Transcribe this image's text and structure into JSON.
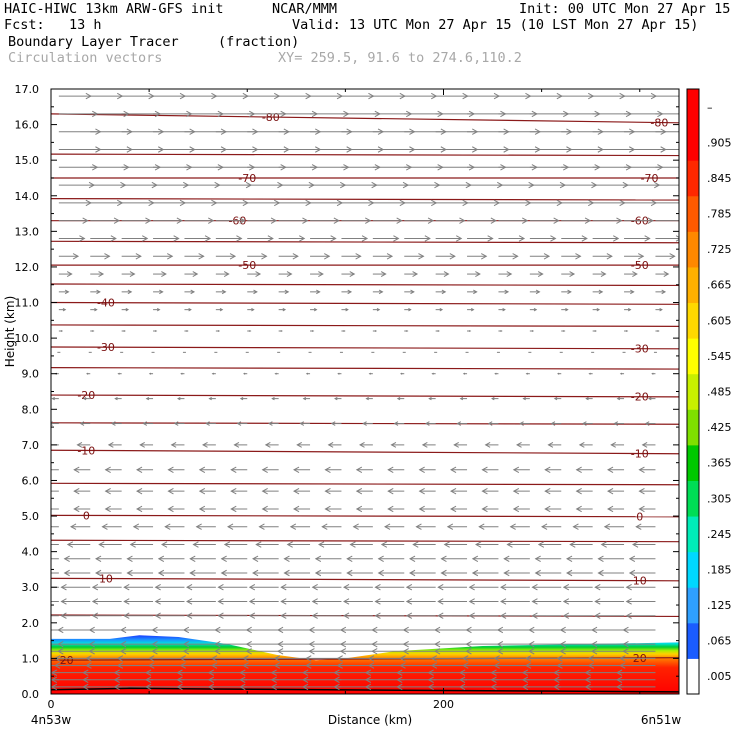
{
  "header": {
    "model": "HAIC-HIWC 13km ARW-GFS init",
    "org": "NCAR/MMM",
    "init": "Init: 00 UTC Mon 27 Apr 15",
    "fcst": "Fcst:   13 h",
    "valid": "Valid: 13 UTC Mon 27 Apr 15 (10 LST Mon 27 Apr 15)",
    "field_name": "Boundary Layer Tracer",
    "field_units": "(fraction)",
    "vector_name": "Circulation vectors",
    "xy": "XY= 259.5, 91.6 to 274.6,110.2"
  },
  "chart_data": {
    "type": "heatmap",
    "xlabel": "Distance (km)",
    "ylabel": "Height (km)",
    "xlim": [
      0,
      320
    ],
    "ylim": [
      0,
      17
    ],
    "y_ticks": [
      "0.0",
      "1.0",
      "2.0",
      "3.0",
      "4.0",
      "5.0",
      "6.0",
      "7.0",
      "8.0",
      "9.0",
      "10.0",
      "11.0",
      "12.0",
      "13.0",
      "14.0",
      "15.0",
      "16.0",
      "17.0"
    ],
    "x_ticks": [
      {
        "value": 0,
        "label": "0"
      },
      {
        "value": 200,
        "label": "200"
      }
    ],
    "x_endpoints": {
      "left": "4n53w",
      "right": "6n51w"
    },
    "colorbar": {
      "labels": [
        ".005",
        ".065",
        ".125",
        ".185",
        ".245",
        ".305",
        ".365",
        ".425",
        ".485",
        ".545",
        ".605",
        ".665",
        ".725",
        ".785",
        ".845",
        ".905",
        "–"
      ],
      "colors": [
        "#ffffff",
        "#1a5cff",
        "#2fa0ff",
        "#00d8ff",
        "#00ecb8",
        "#00dd55",
        "#00c800",
        "#7fe000",
        "#c8f000",
        "#ffff00",
        "#ffd800",
        "#ffb000",
        "#ff8800",
        "#ff5a00",
        "#ff2800",
        "#ff0000",
        "#ff0000"
      ]
    },
    "terrain_km": [
      {
        "x": 0,
        "y": 0.12
      },
      {
        "x": 40,
        "y": 0.16
      },
      {
        "x": 80,
        "y": 0.14
      },
      {
        "x": 140,
        "y": 0.12
      },
      {
        "x": 200,
        "y": 0.1
      },
      {
        "x": 260,
        "y": 0.08
      },
      {
        "x": 320,
        "y": 0.06
      }
    ],
    "pbl_top_km": [
      {
        "x": 0,
        "y": 1.55
      },
      {
        "x": 30,
        "y": 1.55
      },
      {
        "x": 45,
        "y": 1.65
      },
      {
        "x": 65,
        "y": 1.6
      },
      {
        "x": 90,
        "y": 1.4
      },
      {
        "x": 115,
        "y": 1.1
      },
      {
        "x": 135,
        "y": 0.95
      },
      {
        "x": 150,
        "y": 1.0
      },
      {
        "x": 175,
        "y": 1.2
      },
      {
        "x": 220,
        "y": 1.35
      },
      {
        "x": 270,
        "y": 1.4
      },
      {
        "x": 320,
        "y": 1.45
      }
    ],
    "isotherms": [
      {
        "label": "20",
        "left_km": 0.95,
        "right_km": 1.02,
        "label_left_x": 8,
        "label_right_x": 300
      },
      {
        "label": "10",
        "left_km": 3.25,
        "right_km": 3.18,
        "label_left_x": 28,
        "label_right_x": 300
      },
      {
        "label": "0",
        "left_km": 5.02,
        "right_km": 4.98,
        "label_left_x": 18,
        "label_right_x": 300
      },
      {
        "label": "-10",
        "left_km": 6.85,
        "right_km": 6.75,
        "label_left_x": 18,
        "label_right_x": 300
      },
      {
        "label": "-20",
        "left_km": 8.4,
        "right_km": 8.35,
        "label_left_x": 18,
        "label_right_x": 300
      },
      {
        "label": "-30",
        "left_km": 9.75,
        "right_km": 9.7,
        "label_left_x": 28,
        "label_right_x": 300
      },
      {
        "label": "-40",
        "left_km": 11.0,
        "right_km": 10.95,
        "label_left_x": 28,
        "label_right_x": null
      },
      {
        "label": "-50",
        "left_km": 12.05,
        "right_km": 12.05,
        "label_left_x": 100,
        "label_right_x": 300
      },
      {
        "label": "-60",
        "left_km": 13.3,
        "right_km": 13.3,
        "label_left_x": 95,
        "label_right_x": 300
      },
      {
        "label": "-70",
        "left_km": 14.5,
        "right_km": 14.5,
        "label_left_x": 100,
        "label_right_x": 305
      },
      {
        "label": "-80",
        "left_km": 16.3,
        "right_km": 16.05,
        "label_left_x": 112,
        "label_right_x": 310
      }
    ],
    "unlabeled_contours_km": [
      2.2,
      4.3,
      5.9,
      7.6,
      9.15,
      10.35,
      11.5,
      12.7,
      13.9,
      15.15
    ],
    "vectors": {
      "color": "#808080",
      "levels_km": [
        0.2,
        0.4,
        0.6,
        0.8,
        1.0,
        1.2,
        1.4,
        1.8,
        2.2,
        2.6,
        3.0,
        3.4,
        3.8,
        4.2,
        4.7,
        5.2,
        5.7,
        6.3,
        7.0,
        7.6,
        8.3,
        9.0,
        9.6,
        10.2,
        10.8,
        11.3,
        11.8,
        12.3,
        12.8,
        13.3,
        13.8,
        14.3,
        14.8,
        15.3,
        15.8,
        16.3,
        16.8
      ],
      "u_ms": [
        -12,
        -12,
        -12,
        -11,
        -11,
        -10,
        -10,
        -10,
        -9,
        -9,
        -9,
        -8,
        -8,
        -7,
        -6,
        -5,
        -5,
        -5,
        -4,
        -3,
        -2,
        -1,
        0,
        1,
        2,
        3,
        4,
        6,
        8,
        9,
        10,
        11,
        12,
        13,
        13,
        12,
        10
      ],
      "x_spacing_km": 16
    }
  }
}
